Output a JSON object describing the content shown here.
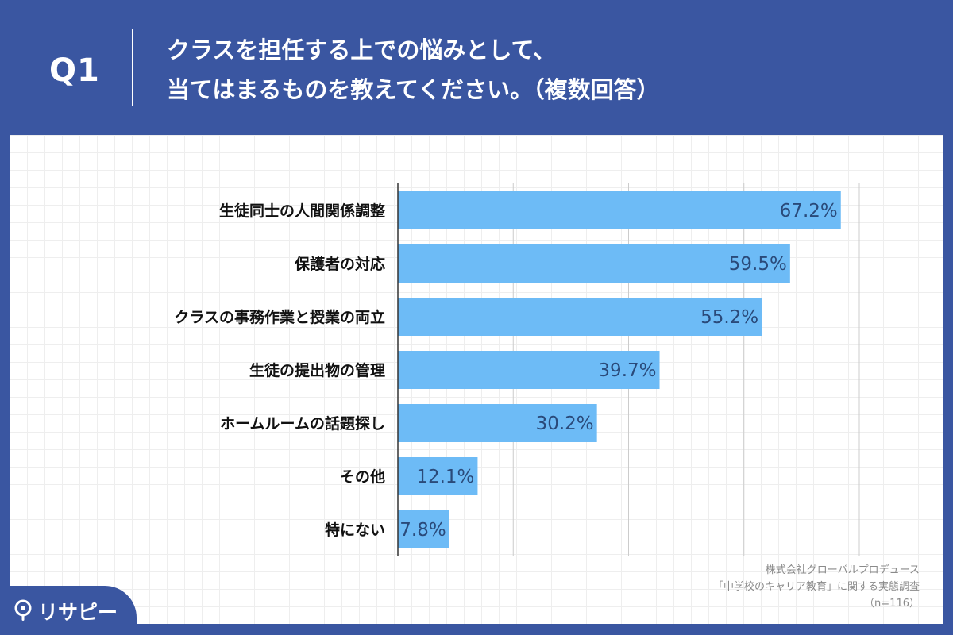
{
  "header": {
    "question_number": "Q1",
    "question_line1": "クラスを担任する上での悩みとして、",
    "question_line2": "当てはまるものを教えてください。（複数回答）"
  },
  "chart_data": {
    "type": "bar",
    "orientation": "horizontal",
    "categories": [
      "生徒同士の人間関係調整",
      "保護者の対応",
      "クラスの事務作業と授業の両立",
      "生徒の提出物の管理",
      "ホームルームの話題探し",
      "その他",
      "特にない"
    ],
    "values": [
      67.2,
      59.5,
      55.2,
      39.7,
      30.2,
      12.1,
      7.8
    ],
    "value_labels": [
      "67.2%",
      "59.5%",
      "55.2%",
      "39.7%",
      "30.2%",
      "12.1%",
      "7.8%"
    ],
    "xlim": [
      0,
      70
    ],
    "grid": true,
    "bar_color": "#6dbbf6",
    "grid_color": "#cccccc"
  },
  "source": {
    "line1": "株式会社グローバルプロデュース",
    "line2": "「中学校のキャリア教育」に関する実態調査",
    "line3": "（n=116）"
  },
  "logo": {
    "icon": "risapi-pin-icon",
    "text": "リサピー"
  },
  "colors": {
    "background": "#3a56a1",
    "panel": "#ffffff",
    "value_text": "#2a4a7a"
  }
}
